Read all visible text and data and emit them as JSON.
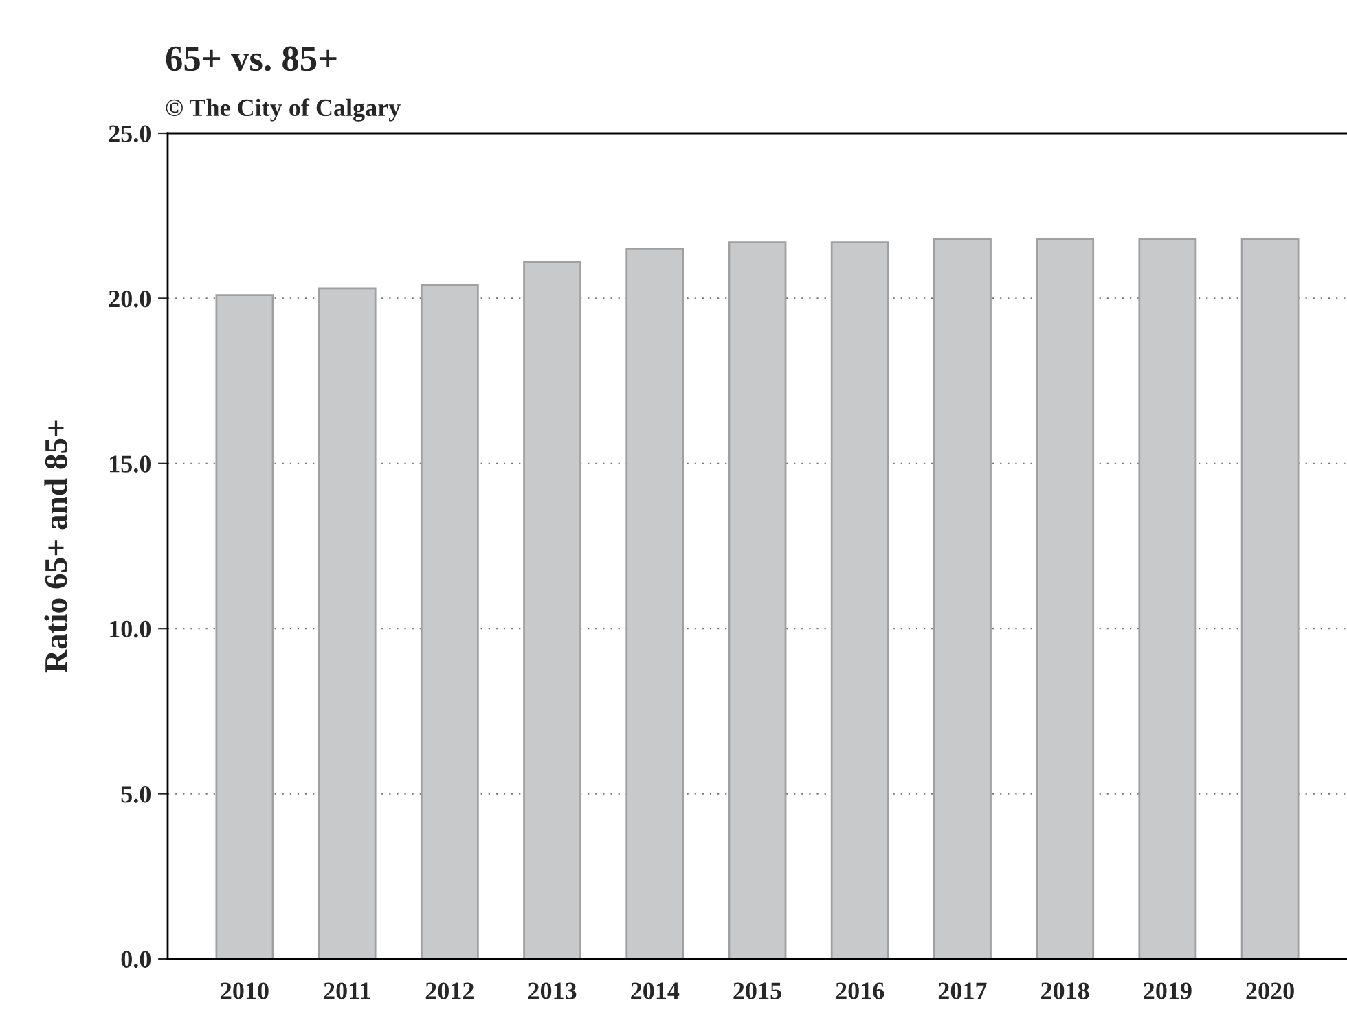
{
  "chart_data": {
    "type": "bar",
    "title": "65+ vs. 85+",
    "subtitle": "© The City of Calgary",
    "ylabel": "Ratio 65+ and 85+",
    "categories": [
      "2010",
      "2011",
      "2012",
      "2013",
      "2014",
      "2015",
      "2016",
      "2017",
      "2018",
      "2019",
      "2020"
    ],
    "values": [
      20.1,
      20.3,
      20.4,
      21.1,
      21.5,
      21.7,
      21.7,
      21.8,
      21.8,
      21.8,
      21.8
    ],
    "color": "#c8c9cb",
    "ylim": [
      0,
      25
    ],
    "yticks": [
      {
        "value": 0,
        "label": "0.0"
      },
      {
        "value": 5,
        "label": "5.0"
      },
      {
        "value": 10,
        "label": "10.0"
      },
      {
        "value": 15,
        "label": "15.0"
      },
      {
        "value": 20,
        "label": "20.0"
      },
      {
        "value": 25,
        "label": "25.0"
      }
    ],
    "grid": "y",
    "legend": false
  }
}
